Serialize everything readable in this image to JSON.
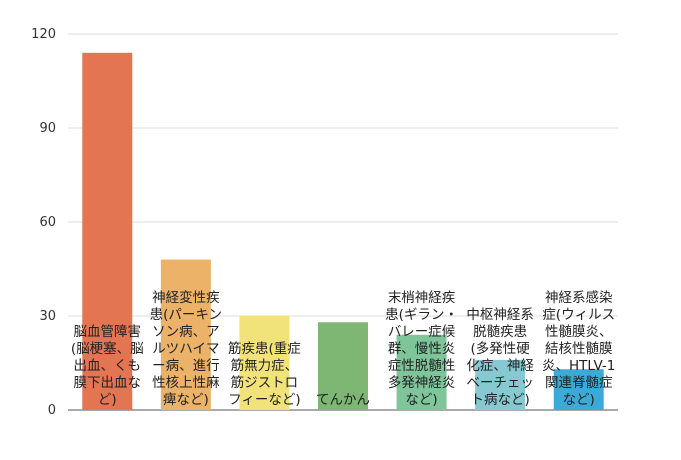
{
  "chart_data": {
    "type": "bar",
    "ylim": [
      0,
      120
    ],
    "yticks": [
      0,
      30,
      60,
      90,
      120
    ],
    "grid": true,
    "bars": [
      {
        "label_lines": [
          "脳血管障害",
          "(脳梗塞、脳",
          "出血、くも",
          "膜下出血な",
          "ど)"
        ],
        "value": 114,
        "color": "#e37553"
      },
      {
        "label_lines": [
          "神経変性疾",
          "患(パーキン",
          "ソン病、ア",
          "ルツハイマ",
          "ー病、進行",
          "性核上性麻",
          "痺など)"
        ],
        "value": 48,
        "color": "#ebb268"
      },
      {
        "label_lines": [
          "筋疾患(重症",
          "筋無力症、",
          "筋ジストロ",
          "フィーなど)"
        ],
        "value": 30,
        "color": "#f1e27a"
      },
      {
        "label_lines": [
          "てんかん"
        ],
        "value": 28,
        "color": "#7db773"
      },
      {
        "label_lines": [
          "末梢神経疾",
          "患(ギラン・",
          "バレー症候",
          "群、慢性炎",
          "症性脱髄性",
          "多発神経炎",
          "など)"
        ],
        "value": 24,
        "color": "#7ec59a"
      },
      {
        "label_lines": [
          "中枢神経系",
          "脱髄疾患",
          "(多発性硬",
          "化症、神経",
          "ベーチェッ",
          "ト病など)"
        ],
        "value": 16,
        "color": "#86c9d1"
      },
      {
        "label_lines": [
          "神経系感染",
          "症(ウィルス",
          "性髄膜炎、",
          "結核性髄膜",
          "炎、HTLV-1",
          "関連脊髄症",
          "など)"
        ],
        "value": 13,
        "color": "#3caad7"
      }
    ]
  }
}
